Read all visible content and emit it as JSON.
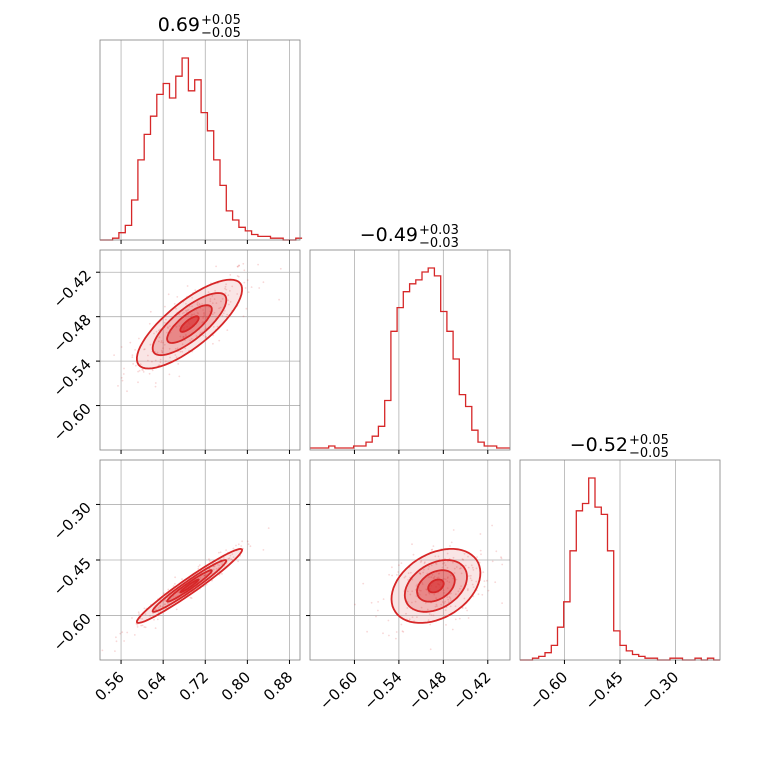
{
  "chart_data": {
    "type": "corner",
    "color": "#d62728",
    "parameters": [
      {
        "median": 0.69,
        "plus": 0.05,
        "minus": 0.05,
        "range": [
          0.52,
          0.9
        ],
        "ticks": [
          0.56,
          0.64,
          0.72,
          0.8,
          0.88
        ]
      },
      {
        "median": -0.49,
        "plus": 0.03,
        "minus": 0.03,
        "range": [
          -0.66,
          -0.39
        ],
        "ticks": [
          -0.6,
          -0.54,
          -0.48,
          -0.42
        ]
      },
      {
        "median": -0.52,
        "plus": 0.05,
        "minus": 0.05,
        "range": [
          -0.72,
          -0.18
        ],
        "ticks": [
          -0.6,
          -0.45,
          -0.3
        ]
      }
    ],
    "titles": [
      {
        "main": "0.69",
        "upper": "+0.05",
        "lower": "−0.05"
      },
      {
        "main": "−0.49",
        "upper": "+0.03",
        "lower": "−0.03"
      },
      {
        "main": "−0.52",
        "upper": "+0.05",
        "lower": "−0.05"
      }
    ],
    "tick_labels": [
      [
        "0.56",
        "0.64",
        "0.72",
        "0.80",
        "0.88"
      ],
      [
        "−0.60",
        "−0.54",
        "−0.48",
        "−0.42"
      ],
      [
        "−0.60",
        "−0.45",
        "−0.30"
      ]
    ],
    "histograms": [
      {
        "bins": [
          0.52,
          0.532,
          0.544,
          0.556,
          0.568,
          0.58,
          0.592,
          0.604,
          0.616,
          0.628,
          0.64,
          0.652,
          0.664,
          0.676,
          0.688,
          0.7,
          0.712,
          0.724,
          0.736,
          0.748,
          0.76,
          0.772,
          0.784,
          0.796,
          0.808,
          0.82,
          0.832,
          0.844,
          0.856,
          0.868,
          0.88,
          0.892,
          0.904
        ],
        "counts": [
          0,
          0,
          1,
          4,
          8,
          22,
          44,
          58,
          68,
          80,
          86,
          78,
          90,
          100,
          82,
          88,
          70,
          60,
          44,
          30,
          16,
          11,
          7,
          5,
          3,
          2,
          2,
          1,
          1,
          0,
          0,
          1
        ]
      },
      {
        "bins": [
          -0.66,
          -0.6516,
          -0.6432,
          -0.6348,
          -0.6264,
          -0.618,
          -0.6096,
          -0.6012,
          -0.5928,
          -0.5844,
          -0.576,
          -0.5676,
          -0.5592,
          -0.5508,
          -0.5424,
          -0.534,
          -0.5256,
          -0.5172,
          -0.5088,
          -0.5004,
          -0.492,
          -0.4836,
          -0.4752,
          -0.4668,
          -0.4584,
          -0.45,
          -0.4416,
          -0.4332,
          -0.4248,
          -0.4164,
          -0.408,
          -0.3996,
          -0.39
        ],
        "counts": [
          1,
          1,
          1,
          2,
          1,
          1,
          1,
          2,
          2,
          4,
          7,
          12,
          25,
          60,
          72,
          80,
          84,
          86,
          90,
          92,
          88,
          70,
          60,
          46,
          28,
          22,
          10,
          4,
          2,
          2,
          1,
          1
        ]
      },
      {
        "bins": [
          -0.72,
          -0.7031,
          -0.6862,
          -0.6694,
          -0.6525,
          -0.6356,
          -0.6187,
          -0.6019,
          -0.585,
          -0.5681,
          -0.5512,
          -0.5344,
          -0.5175,
          -0.5006,
          -0.4838,
          -0.4669,
          -0.45,
          -0.4331,
          -0.4162,
          -0.3994,
          -0.3825,
          -0.3656,
          -0.3488,
          -0.3319,
          -0.315,
          -0.2981,
          -0.2813,
          -0.2644,
          -0.2475,
          -0.2306,
          -0.2138,
          -0.1969,
          -0.18
        ],
        "counts": [
          0,
          0,
          1,
          2,
          4,
          8,
          18,
          32,
          60,
          82,
          86,
          100,
          84,
          80,
          60,
          16,
          8,
          5,
          3,
          2,
          1,
          1,
          0,
          0,
          1,
          1,
          0,
          0,
          1,
          0,
          1,
          0
        ]
      }
    ],
    "contours": {
      "1_0": {
        "center": [
          0.69,
          -0.49
        ],
        "sigma_x": 0.05,
        "sigma_y": 0.03,
        "corr": 0.78
      },
      "2_0": {
        "center": [
          0.69,
          -0.52
        ],
        "sigma_x": 0.05,
        "sigma_y": 0.05,
        "corr": 0.97
      },
      "2_1": {
        "center": [
          -0.49,
          -0.52
        ],
        "sigma_x": 0.03,
        "sigma_y": 0.05,
        "corr": 0.35
      }
    }
  }
}
